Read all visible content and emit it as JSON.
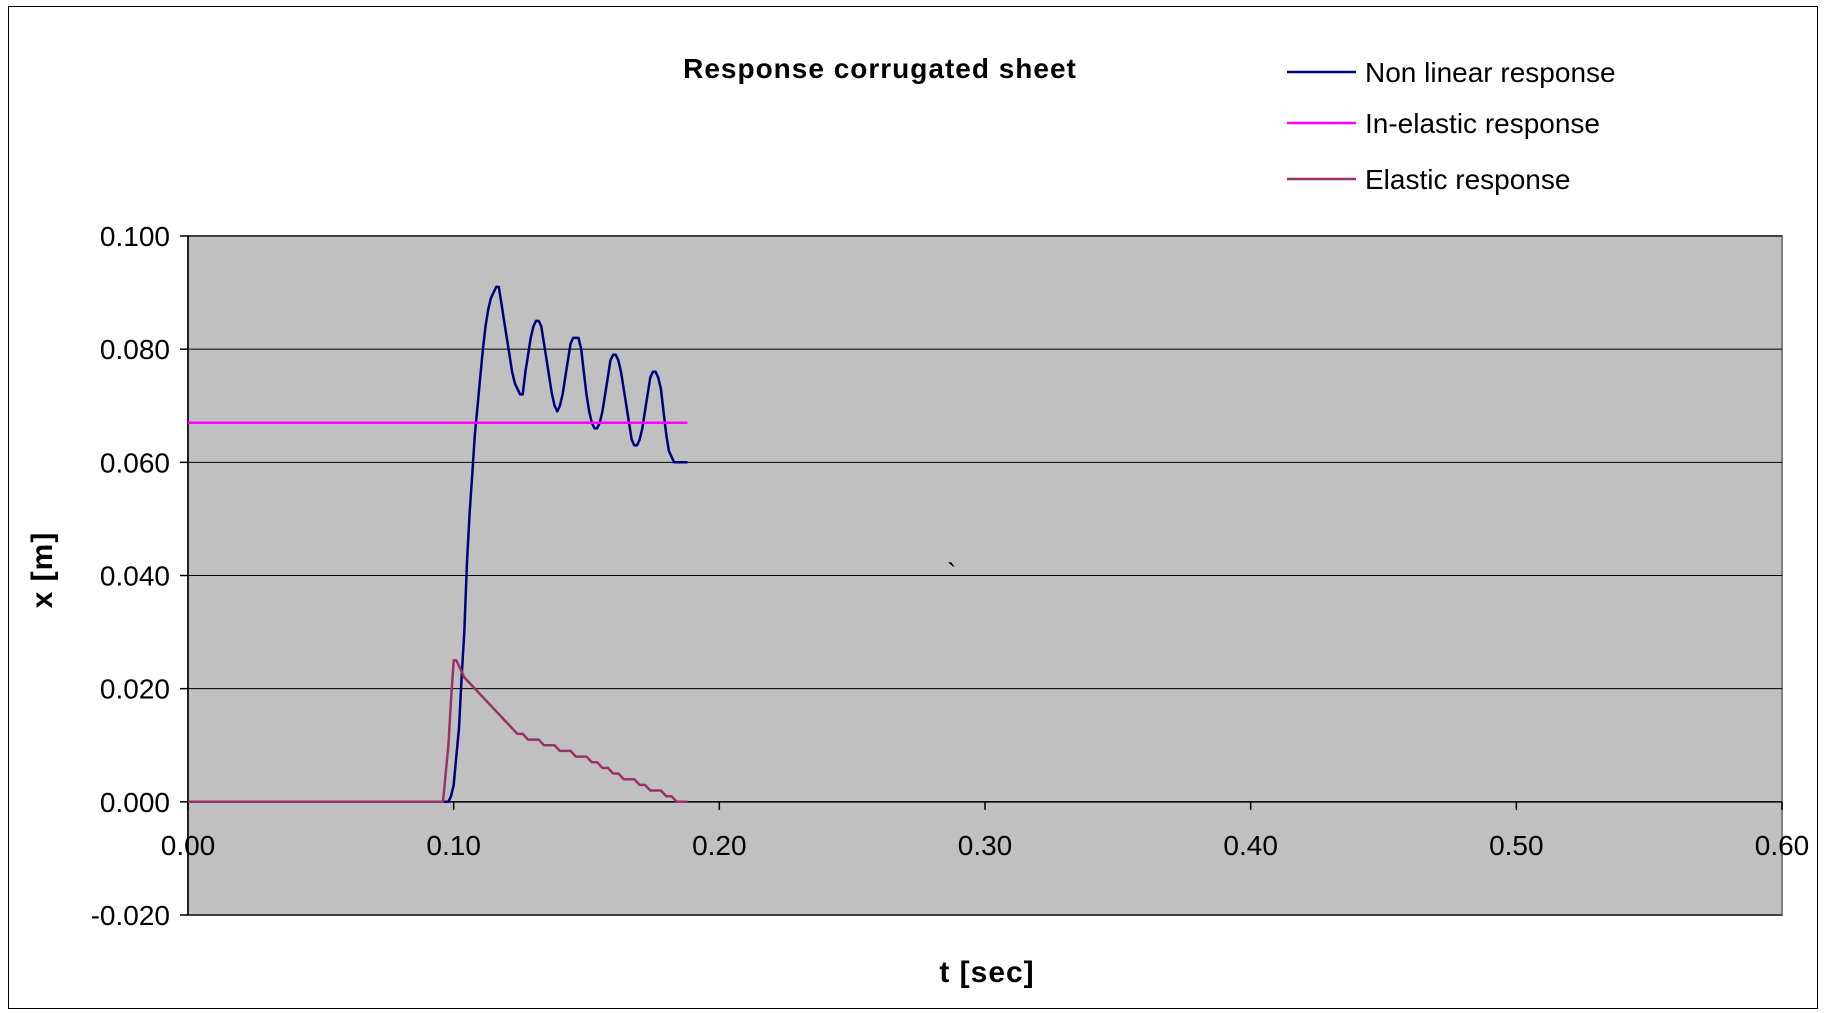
{
  "chart_data": {
    "type": "line",
    "title": "Response  corrugated sheet",
    "xlabel": "t [sec]",
    "ylabel": "x [m]",
    "xlim": [
      0.0,
      0.6
    ],
    "ylim": [
      -0.02,
      0.1
    ],
    "x_ticks": [
      "0.00",
      "0.10",
      "0.20",
      "0.30",
      "0.40",
      "0.50",
      "0.60"
    ],
    "y_ticks": [
      "0.100",
      "0.080",
      "0.060",
      "0.040",
      "0.020",
      "0.000",
      "-0.020"
    ],
    "grid": "horizontal",
    "plot_background": "#c0c0c0",
    "legend_position": "top-right",
    "annotation": "`",
    "series": [
      {
        "name": "Non linear response",
        "color": "#000080",
        "x": [
          0.0,
          0.05,
          0.097,
          0.098,
          0.099,
          0.1,
          0.101,
          0.102,
          0.103,
          0.104,
          0.105,
          0.106,
          0.107,
          0.108,
          0.109,
          0.11,
          0.111,
          0.112,
          0.113,
          0.114,
          0.115,
          0.116,
          0.117,
          0.118,
          0.119,
          0.12,
          0.121,
          0.122,
          0.123,
          0.124,
          0.125,
          0.126,
          0.127,
          0.128,
          0.129,
          0.13,
          0.131,
          0.132,
          0.133,
          0.134,
          0.135,
          0.136,
          0.137,
          0.138,
          0.139,
          0.14,
          0.141,
          0.142,
          0.143,
          0.144,
          0.145,
          0.146,
          0.147,
          0.148,
          0.149,
          0.15,
          0.151,
          0.152,
          0.153,
          0.154,
          0.155,
          0.156,
          0.157,
          0.158,
          0.159,
          0.16,
          0.161,
          0.162,
          0.163,
          0.164,
          0.165,
          0.166,
          0.167,
          0.168,
          0.169,
          0.17,
          0.171,
          0.172,
          0.173,
          0.174,
          0.175,
          0.176,
          0.177,
          0.178,
          0.179,
          0.18,
          0.181,
          0.182,
          0.183,
          0.184,
          0.185,
          0.186,
          0.187,
          0.188
        ],
        "y": [
          0.0,
          0.0,
          0.0,
          0.0,
          0.001,
          0.003,
          0.008,
          0.013,
          0.022,
          0.03,
          0.042,
          0.051,
          0.058,
          0.065,
          0.07,
          0.075,
          0.08,
          0.084,
          0.087,
          0.089,
          0.09,
          0.091,
          0.091,
          0.088,
          0.085,
          0.082,
          0.079,
          0.076,
          0.074,
          0.073,
          0.072,
          0.072,
          0.076,
          0.079,
          0.082,
          0.084,
          0.085,
          0.085,
          0.084,
          0.081,
          0.078,
          0.075,
          0.072,
          0.07,
          0.069,
          0.07,
          0.072,
          0.075,
          0.078,
          0.081,
          0.082,
          0.082,
          0.082,
          0.08,
          0.076,
          0.072,
          0.069,
          0.067,
          0.066,
          0.066,
          0.067,
          0.069,
          0.072,
          0.075,
          0.078,
          0.079,
          0.079,
          0.078,
          0.076,
          0.073,
          0.07,
          0.067,
          0.064,
          0.063,
          0.063,
          0.064,
          0.066,
          0.069,
          0.072,
          0.075,
          0.076,
          0.076,
          0.075,
          0.073,
          0.069,
          0.065,
          0.062,
          0.061,
          0.06,
          0.06,
          0.06,
          0.06,
          0.06,
          0.06
        ]
      },
      {
        "name": "In-elastic response",
        "color": "#ff00ff",
        "x": [
          0.0,
          0.188
        ],
        "y": [
          0.067,
          0.067
        ]
      },
      {
        "name": "Elastic response",
        "color": "#993366",
        "x": [
          0.0,
          0.05,
          0.096,
          0.097,
          0.098,
          0.099,
          0.1,
          0.101,
          0.102,
          0.104,
          0.106,
          0.108,
          0.11,
          0.112,
          0.114,
          0.116,
          0.118,
          0.12,
          0.122,
          0.124,
          0.126,
          0.128,
          0.13,
          0.132,
          0.134,
          0.136,
          0.138,
          0.14,
          0.142,
          0.144,
          0.146,
          0.148,
          0.15,
          0.152,
          0.154,
          0.156,
          0.158,
          0.16,
          0.162,
          0.164,
          0.166,
          0.168,
          0.17,
          0.172,
          0.174,
          0.176,
          0.178,
          0.18,
          0.182,
          0.184,
          0.186,
          0.188
        ],
        "y": [
          0.0,
          0.0,
          0.0,
          0.005,
          0.01,
          0.018,
          0.025,
          0.025,
          0.024,
          0.022,
          0.021,
          0.02,
          0.019,
          0.018,
          0.017,
          0.016,
          0.015,
          0.014,
          0.013,
          0.012,
          0.012,
          0.011,
          0.011,
          0.011,
          0.01,
          0.01,
          0.01,
          0.009,
          0.009,
          0.009,
          0.008,
          0.008,
          0.008,
          0.007,
          0.007,
          0.006,
          0.006,
          0.005,
          0.005,
          0.004,
          0.004,
          0.004,
          0.003,
          0.003,
          0.002,
          0.002,
          0.002,
          0.001,
          0.001,
          0.0,
          0.0,
          0.0
        ]
      }
    ]
  }
}
